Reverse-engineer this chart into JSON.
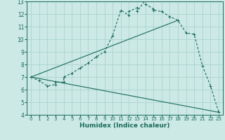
{
  "xlabel": "Humidex (Indice chaleur)",
  "xlim": [
    -0.5,
    23.5
  ],
  "ylim": [
    4,
    13
  ],
  "xticks": [
    0,
    1,
    2,
    3,
    4,
    5,
    6,
    7,
    8,
    9,
    10,
    11,
    12,
    13,
    14,
    15,
    16,
    17,
    18,
    19,
    20,
    21,
    22,
    23
  ],
  "yticks": [
    4,
    5,
    6,
    7,
    8,
    9,
    10,
    11,
    12,
    13
  ],
  "bg_color": "#cce9e5",
  "grid_color": "#aad4ce",
  "line_color": "#1a6b5a",
  "line1_x": [
    0,
    1,
    2,
    3,
    3,
    4,
    4,
    5,
    6,
    7,
    8,
    9,
    10,
    11,
    12,
    12,
    13,
    13,
    14,
    14,
    15,
    15,
    16,
    17,
    18,
    19,
    20,
    21,
    22,
    23
  ],
  "line1_y": [
    7.0,
    6.7,
    6.3,
    6.4,
    6.6,
    6.6,
    7.0,
    7.3,
    7.7,
    8.1,
    8.6,
    9.0,
    10.3,
    12.3,
    11.9,
    12.2,
    12.5,
    12.2,
    13.1,
    12.8,
    12.4,
    12.3,
    12.2,
    11.8,
    11.5,
    10.5,
    10.4,
    7.9,
    6.3,
    4.2
  ],
  "line2_x": [
    0,
    18
  ],
  "line2_y": [
    7.0,
    11.5
  ],
  "line3_x": [
    0,
    23
  ],
  "line3_y": [
    7.0,
    4.2
  ]
}
